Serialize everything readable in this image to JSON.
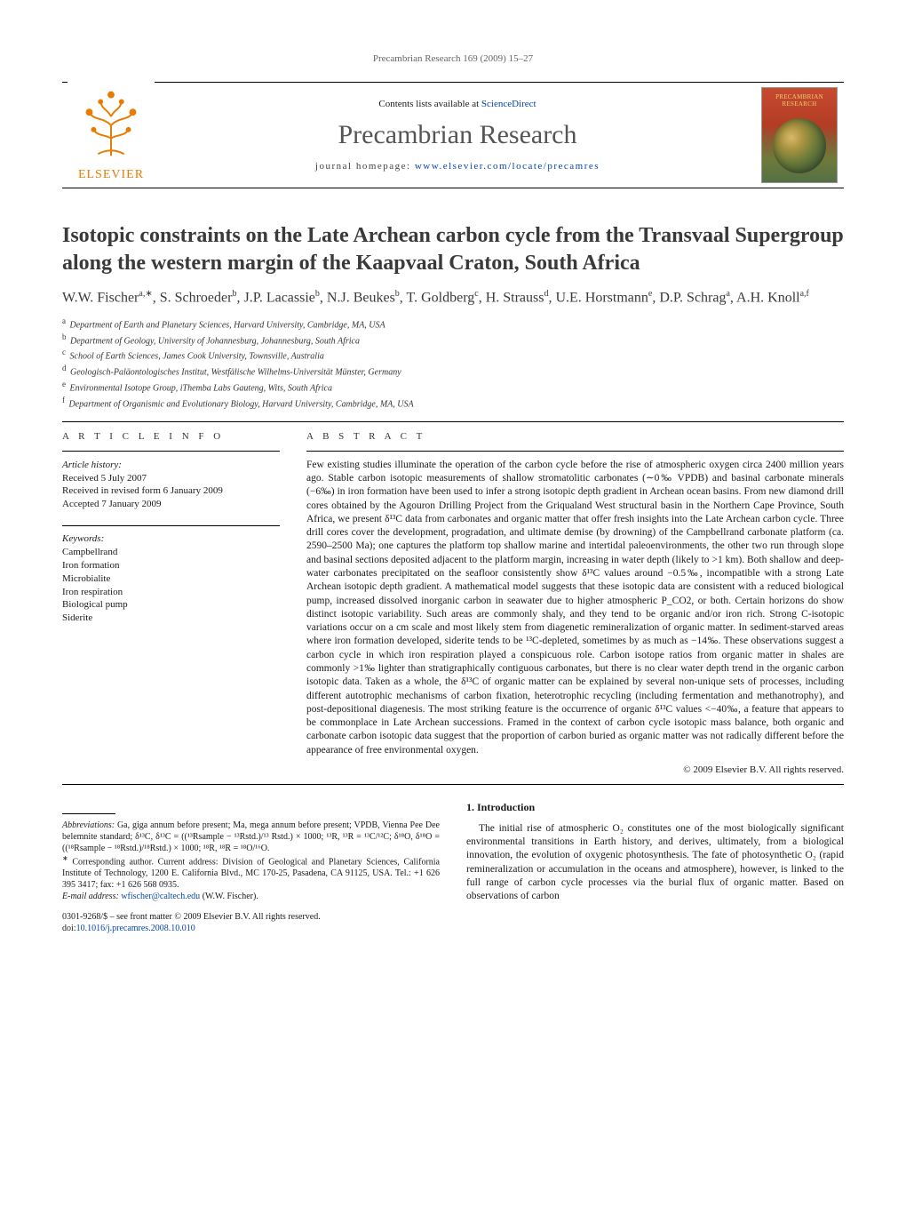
{
  "running_head": "Precambrian Research 169 (2009) 15–27",
  "banner": {
    "publisher_label": "ELSEVIER",
    "sciencedirect_prefix": "Contents lists available at ",
    "sciencedirect_link": "ScienceDirect",
    "journal_name": "Precambrian Research",
    "homepage_prefix": "journal homepage: ",
    "homepage_link": "www.elsevier.com/locate/precamres",
    "cover_label": "PRECAMBRIAN RESEARCH"
  },
  "title": "Isotopic constraints on the Late Archean carbon cycle from the Transvaal Supergroup along the western margin of the Kaapvaal Craton, South Africa",
  "authors_html": "W.W. Fischer<sup>a,∗</sup>, S. Schroeder<sup>b</sup>, J.P. Lacassie<sup>b</sup>, N.J. Beukes<sup>b</sup>, T. Goldberg<sup>c</sup>, H. Strauss<sup>d</sup>, U.E. Horstmann<sup>e</sup>, D.P. Schrag<sup>a</sup>, A.H. Knoll<sup>a,f</sup>",
  "affiliations": [
    {
      "key": "a",
      "text": "Department of Earth and Planetary Sciences, Harvard University, Cambridge, MA, USA"
    },
    {
      "key": "b",
      "text": "Department of Geology, University of Johannesburg, Johannesburg, South Africa"
    },
    {
      "key": "c",
      "text": "School of Earth Sciences, James Cook University, Townsville, Australia"
    },
    {
      "key": "d",
      "text": "Geologisch-Paläontologisches Institut, Westfälische Wilhelms-Universität Münster, Germany"
    },
    {
      "key": "e",
      "text": "Environmental Isotope Group, iThemba Labs Gauteng, Wits, South Africa"
    },
    {
      "key": "f",
      "text": "Department of Organismic and Evolutionary Biology, Harvard University, Cambridge, MA, USA"
    }
  ],
  "ai_head": "A R T I C L E    I N F O",
  "abs_head": "A B S T R A C T",
  "history": {
    "label": "Article history:",
    "received": "Received 5 July 2007",
    "revised": "Received in revised form 6 January 2009",
    "accepted": "Accepted 7 January 2009"
  },
  "keywords_label": "Keywords:",
  "keywords": [
    "Campbellrand",
    "Iron formation",
    "Microbialite",
    "Iron respiration",
    "Biological pump",
    "Siderite"
  ],
  "abstract": "Few existing studies illuminate the operation of the carbon cycle before the rise of atmospheric oxygen circa 2400 million years ago. Stable carbon isotopic measurements of shallow stromatolitic carbonates (∼0‰ VPDB) and basinal carbonate minerals (−6‰) in iron formation have been used to infer a strong isotopic depth gradient in Archean ocean basins. From new diamond drill cores obtained by the Agouron Drilling Project from the Griqualand West structural basin in the Northern Cape Province, South Africa, we present δ¹³C data from carbonates and organic matter that offer fresh insights into the Late Archean carbon cycle. Three drill cores cover the development, progradation, and ultimate demise (by drowning) of the Campbellrand carbonate platform (ca. 2590–2500 Ma); one captures the platform top shallow marine and intertidal paleoenvironments, the other two run through slope and basinal sections deposited adjacent to the platform margin, increasing in water depth (likely to >1 km). Both shallow and deep-water carbonates precipitated on the seafloor consistently show δ¹³C values around −0.5‰, incompatible with a strong Late Archean isotopic depth gradient. A mathematical model suggests that these isotopic data are consistent with a reduced biological pump, increased dissolved inorganic carbon in seawater due to higher atmospheric P_CO2, or both. Certain horizons do show distinct isotopic variability. Such areas are commonly shaly, and they tend to be organic and/or iron rich. Strong C-isotopic variations occur on a cm scale and most likely stem from diagenetic remineralization of organic matter. In sediment-starved areas where iron formation developed, siderite tends to be ¹³C-depleted, sometimes by as much as −14‰. These observations suggest a carbon cycle in which iron respiration played a conspicuous role. Carbon isotope ratios from organic matter in shales are commonly >1‰ lighter than stratigraphically contiguous carbonates, but there is no clear water depth trend in the organic carbon isotopic data. Taken as a whole, the δ¹³C of organic matter can be explained by several non-unique sets of processes, including different autotrophic mechanisms of carbon fixation, heterotrophic recycling (including fermentation and methanotrophy), and post-depositional diagenesis. The most striking feature is the occurrence of organic δ¹³C values <−40‰, a feature that appears to be commonplace in Late Archean successions. Framed in the context of carbon cycle isotopic mass balance, both organic and carbonate carbon isotopic data suggest that the proportion of carbon buried as organic matter was not radically different before the appearance of free environmental oxygen.",
  "copyright": "© 2009 Elsevier B.V. All rights reserved.",
  "abbrev_label": "Abbreviations:",
  "abbrev_text": "  Ga, giga annum before present; Ma, mega annum before present; VPDB, Vienna Pee Dee belemnite standard; δ¹³C, δ¹³C = ((¹³Rsample − ¹³Rstd.)/¹³ Rstd.) × 1000; ¹³R, ¹³R = ¹³C/¹²C; δ¹⁸O, δ¹⁸O = ((¹⁸Rsample − ¹⁸Rstd.)/¹⁸Rstd.) × 1000; ¹⁸R, ¹⁸R = ¹⁸O/¹⁶O.",
  "corr_label": "∗",
  "corr_text": " Corresponding author. Current address: Division of Geological and Planetary Sciences, California Institute of Technology, 1200 E. California Blvd., MC 170-25, Pasadena, CA 91125, USA. Tel.: +1 626 395 3417; fax: +1 626 568 0935.",
  "email_label": "E-mail address: ",
  "email_link": "wfischer@caltech.edu",
  "email_suffix": " (W.W. Fischer).",
  "footer_line1": "0301-9268/$ – see front matter © 2009 Elsevier B.V. All rights reserved.",
  "footer_doi_prefix": "doi:",
  "footer_doi": "10.1016/j.precamres.2008.10.010",
  "intro_head": "1. Introduction",
  "intro_p1": "The initial rise of atmospheric O₂ constitutes one of the most biologically significant environmental transitions in Earth history, and derives, ultimately, from a biological innovation, the evolution of oxygenic photosynthesis. The fate of photosynthetic O₂ (rapid remineralization or accumulation in the oceans and atmosphere), however, is linked to the full range of carbon cycle processes via the burial flux of organic matter. Based on observations of carbon",
  "colors": {
    "link": "#0645ad",
    "elsevier_orange": "#e87b00",
    "text": "#1a1a1a",
    "muted": "#555555"
  },
  "typography": {
    "body_family": "Times New Roman",
    "title_pt": 24,
    "authors_pt": 16,
    "journal_name_pt": 30,
    "body_pt": 11.5,
    "footnote_pt": 10
  }
}
